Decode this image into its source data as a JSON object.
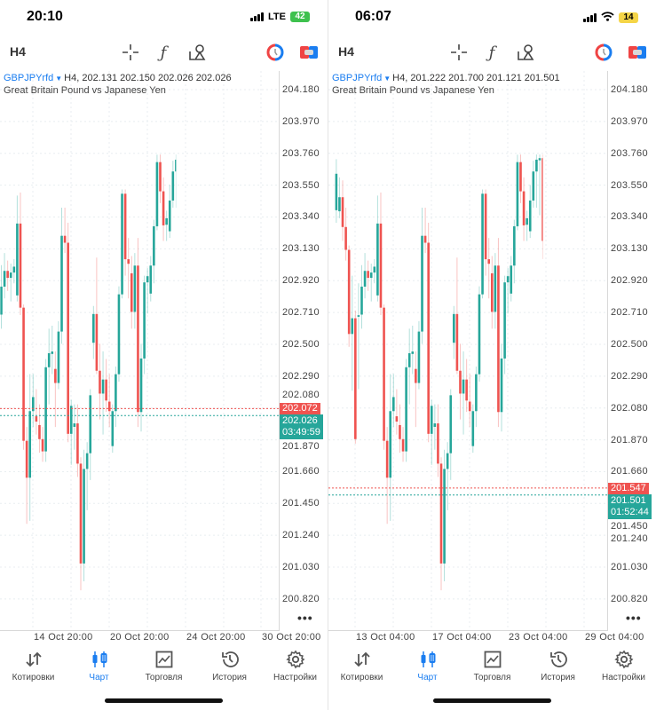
{
  "colors": {
    "up": "#26a69a",
    "down": "#ef5350",
    "accent": "#1a7df0"
  },
  "toolbar": {
    "timeframe": "H4",
    "icons": [
      "crosshair-icon",
      "function-icon",
      "objects-icon",
      "one-click-trading-icon",
      "trade-icon"
    ]
  },
  "nav": [
    {
      "label": "Котировки",
      "icon": "quotes-icon"
    },
    {
      "label": "Чарт",
      "icon": "chart-icon",
      "active": true
    },
    {
      "label": "Торговля",
      "icon": "trade-icon"
    },
    {
      "label": "История",
      "icon": "history-icon"
    },
    {
      "label": "Настройки",
      "icon": "settings-icon"
    }
  ],
  "more_label": "•••",
  "price_axis": [
    "204.180",
    "203.970",
    "203.760",
    "203.550",
    "203.340",
    "203.130",
    "202.920",
    "202.710",
    "202.500",
    "202.290",
    "202.080",
    "201.870",
    "201.660",
    "201.450",
    "201.240",
    "201.030",
    "200.820"
  ],
  "screens": [
    {
      "status": {
        "time": "20:10",
        "network": "LTE",
        "battery": "42"
      },
      "symbol": "GBPJPYrfd",
      "ohlc": "H4, 202.131 202.150 202.026 202.026",
      "description": "Great Britain Pound vs Japanese Yen",
      "ask": "202.072",
      "bid": "202.026",
      "timer": "03:49:59",
      "time_labels": [
        "14 Oct 20:00",
        "20 Oct 20:00",
        "24 Oct 20:00",
        "30 Oct 20:00"
      ]
    },
    {
      "status": {
        "time": "06:07",
        "network": "wifi",
        "battery": "14"
      },
      "symbol": "GBPJPYrfd",
      "ohlc": "H4, 201.222 201.700 201.121 201.501",
      "description": "Great Britain Pound vs Japanese Yen",
      "ask": "201.547",
      "bid": "201.501",
      "timer": "01:52:44",
      "time_labels": [
        "13 Oct 04:00",
        "17 Oct 04:00",
        "23 Oct 04:00",
        "29 Oct 04:00"
      ]
    }
  ],
  "chart_data": {
    "type": "candlestick",
    "symbol": "GBPJPYrfd",
    "timeframe": "H4",
    "ylim": [
      200.72,
      204.3
    ],
    "format": "[open,high,low,close]",
    "prefix_right": [
      [
        203.383,
        203.72,
        203.3,
        203.624
      ],
      [
        203.376,
        203.6,
        203.33,
        203.469
      ],
      [
        203.469,
        203.58,
        203.18,
        203.272
      ],
      [
        203.272,
        203.4,
        203.05,
        203.121
      ],
      [
        203.121,
        203.15,
        202.48,
        202.565
      ],
      [
        202.565,
        202.95,
        202.19,
        202.669
      ],
      [
        202.669,
        202.72,
        201.84,
        201.87
      ],
      [
        202.679,
        202.9,
        202.2,
        202.689
      ]
    ],
    "common": [
      [
        202.693,
        203.02,
        202.6,
        202.878
      ],
      [
        202.878,
        203.1,
        202.8,
        202.982
      ],
      [
        202.982,
        203.05,
        202.85,
        202.936
      ],
      [
        202.936,
        203.03,
        202.78,
        202.971
      ],
      [
        202.971,
        203.06,
        202.9,
        203.01
      ],
      [
        202.82,
        203.48,
        202.78,
        203.295
      ],
      [
        203.295,
        203.5,
        202.69,
        202.739
      ],
      [
        202.739,
        202.76,
        201.8,
        201.859
      ],
      [
        201.859,
        201.95,
        201.31,
        201.615
      ],
      [
        201.615,
        202.3,
        201.33,
        202.055
      ],
      [
        202.055,
        202.3,
        201.95,
        202.148
      ],
      [
        202.021,
        202.2,
        201.9,
        201.986
      ],
      [
        201.963,
        202.1,
        201.78,
        201.87
      ],
      [
        201.87,
        201.95,
        201.72,
        201.789
      ],
      [
        201.789,
        202.4,
        201.72,
        202.345
      ],
      [
        202.345,
        202.6,
        202.1,
        202.438
      ],
      [
        202.433,
        202.62,
        202.3,
        202.449
      ],
      [
        202.334,
        202.45,
        201.95,
        202.241
      ],
      [
        202.241,
        202.65,
        202.2,
        202.581
      ],
      [
        202.581,
        203.4,
        202.5,
        203.214
      ],
      [
        203.214,
        203.4,
        203.1,
        203.168
      ],
      [
        203.168,
        203.3,
        201.85,
        201.905
      ],
      [
        201.905,
        202.13,
        201.7,
        202.09
      ],
      [
        201.951,
        202.1,
        201.8,
        201.974
      ],
      [
        201.974,
        202.1,
        201.62,
        201.708
      ],
      [
        201.708,
        201.75,
        200.87,
        201.048
      ],
      [
        201.048,
        201.8,
        200.93,
        201.673
      ],
      [
        201.673,
        201.85,
        201.4,
        201.777
      ],
      [
        201.777,
        202.2,
        201.6,
        202.16
      ],
      [
        202.507,
        202.75,
        202.4,
        202.697
      ],
      [
        202.697,
        203.07,
        202.3,
        202.322
      ],
      [
        202.322,
        202.5,
        202.0,
        202.171
      ],
      [
        202.171,
        202.45,
        201.9,
        202.264
      ],
      [
        202.264,
        202.4,
        202.05,
        202.125
      ],
      [
        202.118,
        202.3,
        201.95,
        202.055
      ],
      [
        201.824,
        202.1,
        201.78,
        202.055
      ],
      [
        202.055,
        202.35,
        201.95,
        202.299
      ],
      [
        202.299,
        202.88,
        202.25,
        202.827
      ],
      [
        202.827,
        203.52,
        202.8,
        203.492
      ],
      [
        203.492,
        203.52,
        202.95,
        203.059
      ],
      [
        203.059,
        203.2,
        202.8,
        203.029
      ],
      [
        202.966,
        203.08,
        202.6,
        202.711
      ],
      [
        202.711,
        203.1,
        202.6,
        203.017
      ],
      [
        203.017,
        203.2,
        201.95,
        202.049
      ],
      [
        202.049,
        202.5,
        201.92,
        202.403
      ],
      [
        202.403,
        202.95,
        202.3,
        202.906
      ],
      [
        202.906,
        203.0,
        202.7,
        202.947
      ],
      [
        202.832,
        203.08,
        202.78,
        203.017
      ],
      [
        203.017,
        203.32,
        202.9,
        203.277
      ],
      [
        203.277,
        203.75,
        203.25,
        203.701
      ],
      [
        203.701,
        203.76,
        203.43,
        203.508
      ],
      [
        203.508,
        203.6,
        203.18,
        203.283
      ],
      [
        203.287,
        203.38,
        203.18,
        203.33
      ],
      [
        203.244,
        203.55,
        203.2,
        203.447
      ],
      [
        203.447,
        203.71,
        203.4,
        203.639
      ],
      [
        203.639,
        203.92,
        203.4,
        203.717
      ],
      [
        203.713,
        203.78,
        203.35,
        203.727
      ],
      [
        203.727,
        203.96,
        203.06,
        203.18
      ],
      [
        203.18,
        203.51,
        203.05,
        203.467
      ],
      [
        203.903,
        204.02,
        203.42,
        203.678
      ],
      [
        203.678,
        203.95,
        203.6,
        203.897
      ],
      [
        203.897,
        204.06,
        203.52,
        203.629
      ],
      [
        203.629,
        204.04,
        203.52,
        203.991
      ],
      [
        203.987,
        204.22,
        203.83,
        203.995
      ],
      [
        203.995,
        204.14,
        203.72,
        203.893
      ],
      [
        203.893,
        203.93,
        203.52,
        203.551
      ],
      [
        203.551,
        203.56,
        202.93,
        202.974
      ],
      [
        202.974,
        202.99,
        202.12,
        202.163
      ],
      [
        202.163,
        202.42,
        202.03,
        202.124
      ],
      [
        202.075,
        202.24,
        201.645,
        202.124
      ]
    ],
    "tail_left": [
      [
        202.131,
        202.15,
        202.026,
        202.026
      ]
    ],
    "tail_right": [
      [
        202.131,
        202.2,
        201.85,
        201.879
      ],
      [
        201.749,
        201.94,
        201.1,
        201.222
      ],
      [
        201.222,
        201.7,
        201.121,
        201.501
      ]
    ]
  }
}
